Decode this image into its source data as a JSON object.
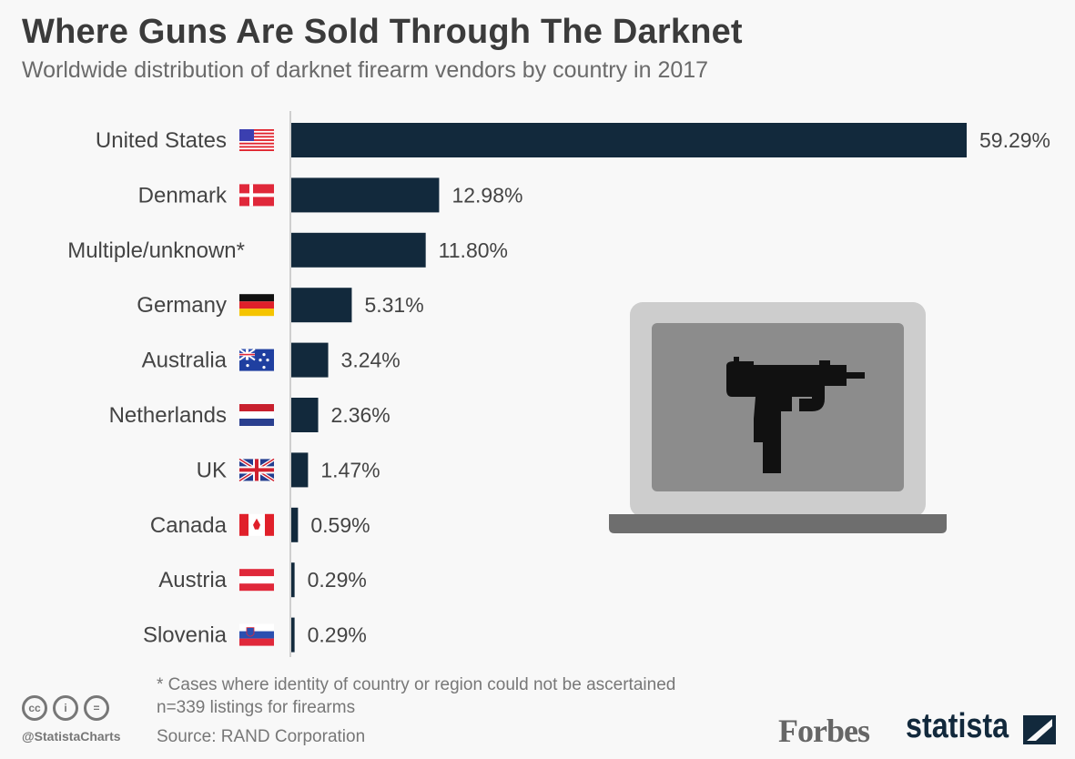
{
  "title": "Where Guns Are Sold Through The Darknet",
  "subtitle": "Worldwide distribution of darknet firearm vendors by country in 2017",
  "chart_data": {
    "type": "bar",
    "orientation": "horizontal",
    "categories": [
      "United States",
      "Denmark",
      "Multiple/unknown*",
      "Germany",
      "Australia",
      "Netherlands",
      "UK",
      "Canada",
      "Austria",
      "Slovenia"
    ],
    "values": [
      59.29,
      12.98,
      11.8,
      5.31,
      3.24,
      2.36,
      1.47,
      0.59,
      0.29,
      0.29
    ],
    "value_labels": [
      "59.29%",
      "12.98%",
      "11.80%",
      "5.31%",
      "3.24%",
      "2.36%",
      "1.47%",
      "0.59%",
      "0.29%",
      "0.29%"
    ],
    "flags": [
      "us",
      "dk",
      "",
      "de",
      "au",
      "nl",
      "uk",
      "ca",
      "at",
      "si"
    ],
    "unit": "%",
    "xlim": [
      0,
      59.29
    ],
    "bar_color": "#12293c",
    "grid": false
  },
  "footer": {
    "note": "* Cases where identity of country or region could not be ascertained",
    "sample": "n=339 listings for firearms",
    "source": "Source: RAND Corporation",
    "handle": "@StatistaCharts",
    "cc_icons": [
      "cc",
      "i",
      "="
    ],
    "forbes": "Forbes",
    "statista": "statista"
  }
}
